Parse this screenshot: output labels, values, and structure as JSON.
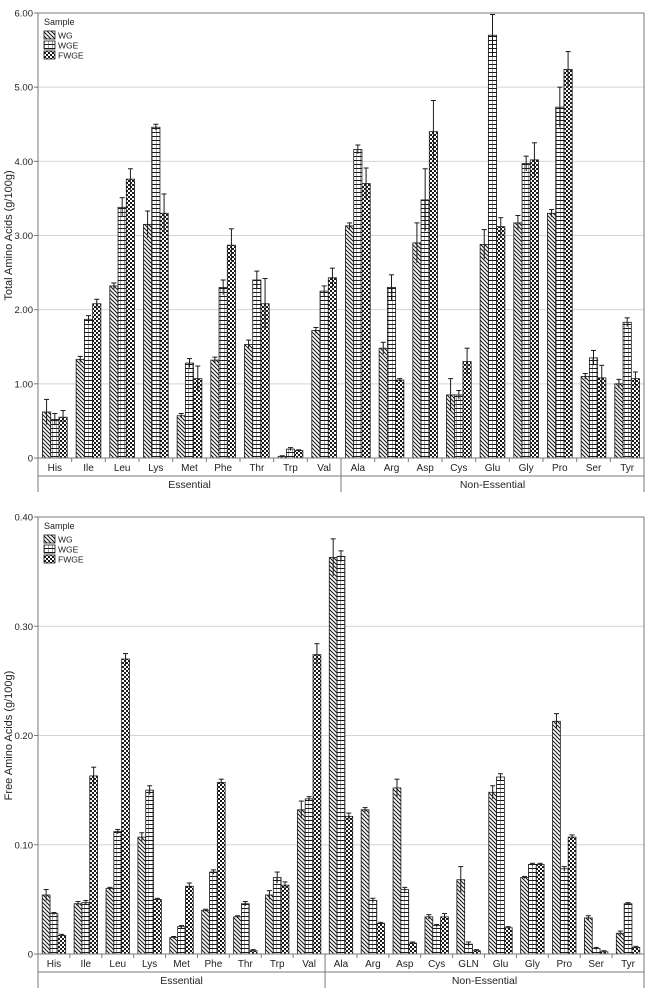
{
  "colors": {
    "frame": "#7a7a7a",
    "grid": "#d4d4d4",
    "bar_stroke": "#1a1a1a",
    "pattern": "#1a1a1a",
    "background": "#ffffff"
  },
  "chart_data": [
    {
      "type": "bar",
      "ylabel": "Total Amino Acids (g/100g)",
      "ylim": [
        0,
        6.0
      ],
      "yticks": [
        0,
        1.0,
        2.0,
        3.0,
        4.0,
        5.0,
        6.0
      ],
      "ytick_labels": [
        "0",
        "1.00",
        "2.00",
        "3.00",
        "4.00",
        "5.00",
        "6.00"
      ],
      "grid": true,
      "legend_title": "Sample",
      "legend_position": "top-left",
      "categories": [
        "His",
        "Ile",
        "Leu",
        "Lys",
        "Met",
        "Phe",
        "Thr",
        "Trp",
        "Val",
        "Ala",
        "Arg",
        "Asp",
        "Cys",
        "Glu",
        "Gly",
        "Pro",
        "Ser",
        "Tyr"
      ],
      "groups": [
        {
          "label": "Essential",
          "count": 9
        },
        {
          "label": "Non-Essential",
          "count": 9
        }
      ],
      "series": [
        {
          "name": "WG",
          "pattern": "diag",
          "values": [
            0.62,
            1.33,
            2.32,
            3.15,
            0.57,
            1.32,
            1.53,
            0.02,
            1.72,
            3.13,
            1.48,
            2.9,
            0.85,
            2.88,
            3.17,
            3.3,
            1.1,
            1.0
          ],
          "errors": [
            0.17,
            0.04,
            0.04,
            0.18,
            0.03,
            0.04,
            0.06,
            0.01,
            0.04,
            0.04,
            0.08,
            0.27,
            0.22,
            0.2,
            0.1,
            0.05,
            0.04,
            0.06
          ]
        },
        {
          "name": "WGE",
          "pattern": "hlines",
          "values": [
            0.52,
            1.87,
            3.38,
            4.46,
            1.28,
            2.3,
            2.4,
            0.12,
            2.25,
            4.16,
            2.3,
            3.48,
            0.85,
            5.7,
            3.97,
            4.73,
            1.35,
            1.83
          ],
          "errors": [
            0.08,
            0.05,
            0.13,
            0.04,
            0.06,
            0.1,
            0.12,
            0.02,
            0.07,
            0.06,
            0.17,
            0.42,
            0.06,
            0.28,
            0.1,
            0.27,
            0.1,
            0.06
          ]
        },
        {
          "name": "FWGE",
          "pattern": "checker",
          "values": [
            0.55,
            2.08,
            3.76,
            3.3,
            1.07,
            2.87,
            2.08,
            0.1,
            2.43,
            3.7,
            1.05,
            4.4,
            1.3,
            3.12,
            4.02,
            5.24,
            1.08,
            1.07
          ],
          "errors": [
            0.09,
            0.06,
            0.14,
            0.26,
            0.17,
            0.22,
            0.34,
            0.01,
            0.13,
            0.21,
            0.02,
            0.42,
            0.18,
            0.12,
            0.23,
            0.24,
            0.17,
            0.09
          ]
        }
      ]
    },
    {
      "type": "bar",
      "ylabel": "Free Amino Acids (g/100g)",
      "ylim": [
        0,
        0.4
      ],
      "yticks": [
        0,
        0.1,
        0.2,
        0.3,
        0.4
      ],
      "ytick_labels": [
        "0",
        "0.10",
        "0.20",
        "0.30",
        "0.40"
      ],
      "grid": true,
      "legend_title": "Sample",
      "legend_position": "top-left",
      "categories": [
        "His",
        "Ile",
        "Leu",
        "Lys",
        "Met",
        "Phe",
        "Thr",
        "Trp",
        "Val",
        "Ala",
        "Arg",
        "Asp",
        "Cys",
        "GLN",
        "Glu",
        "Gly",
        "Pro",
        "Ser",
        "Tyr"
      ],
      "groups": [
        {
          "label": "Essential",
          "count": 9
        },
        {
          "label": "Non-Essential",
          "count": 10
        }
      ],
      "series": [
        {
          "name": "WG",
          "pattern": "diag",
          "values": [
            0.054,
            0.046,
            0.06,
            0.107,
            0.015,
            0.04,
            0.034,
            0.054,
            0.132,
            0.363,
            0.132,
            0.152,
            0.034,
            0.068,
            0.148,
            0.07,
            0.213,
            0.033,
            0.019
          ],
          "errors": [
            0.005,
            0.002,
            0.001,
            0.004,
            0.001,
            0.001,
            0.001,
            0.004,
            0.008,
            0.017,
            0.002,
            0.008,
            0.002,
            0.012,
            0.006,
            0.001,
            0.007,
            0.002,
            0.002
          ]
        },
        {
          "name": "WGE",
          "pattern": "hlines",
          "values": [
            0.037,
            0.047,
            0.112,
            0.15,
            0.025,
            0.075,
            0.046,
            0.07,
            0.142,
            0.364,
            0.049,
            0.059,
            0.026,
            0.009,
            0.162,
            0.082,
            0.078,
            0.005,
            0.046
          ],
          "errors": [
            0.001,
            0.002,
            0.002,
            0.004,
            0.001,
            0.002,
            0.002,
            0.005,
            0.002,
            0.005,
            0.002,
            0.002,
            0.001,
            0.002,
            0.003,
            0.001,
            0.002,
            0.001,
            0.001
          ]
        },
        {
          "name": "FWGE",
          "pattern": "checker",
          "values": [
            0.017,
            0.163,
            0.27,
            0.05,
            0.062,
            0.157,
            0.003,
            0.063,
            0.274,
            0.126,
            0.028,
            0.01,
            0.034,
            0.003,
            0.024,
            0.082,
            0.107,
            0.002,
            0.006
          ],
          "errors": [
            0.001,
            0.008,
            0.005,
            0.001,
            0.003,
            0.003,
            0.001,
            0.003,
            0.01,
            0.003,
            0.001,
            0.001,
            0.003,
            0.001,
            0.001,
            0.001,
            0.002,
            0.001,
            0.001
          ]
        }
      ]
    }
  ]
}
